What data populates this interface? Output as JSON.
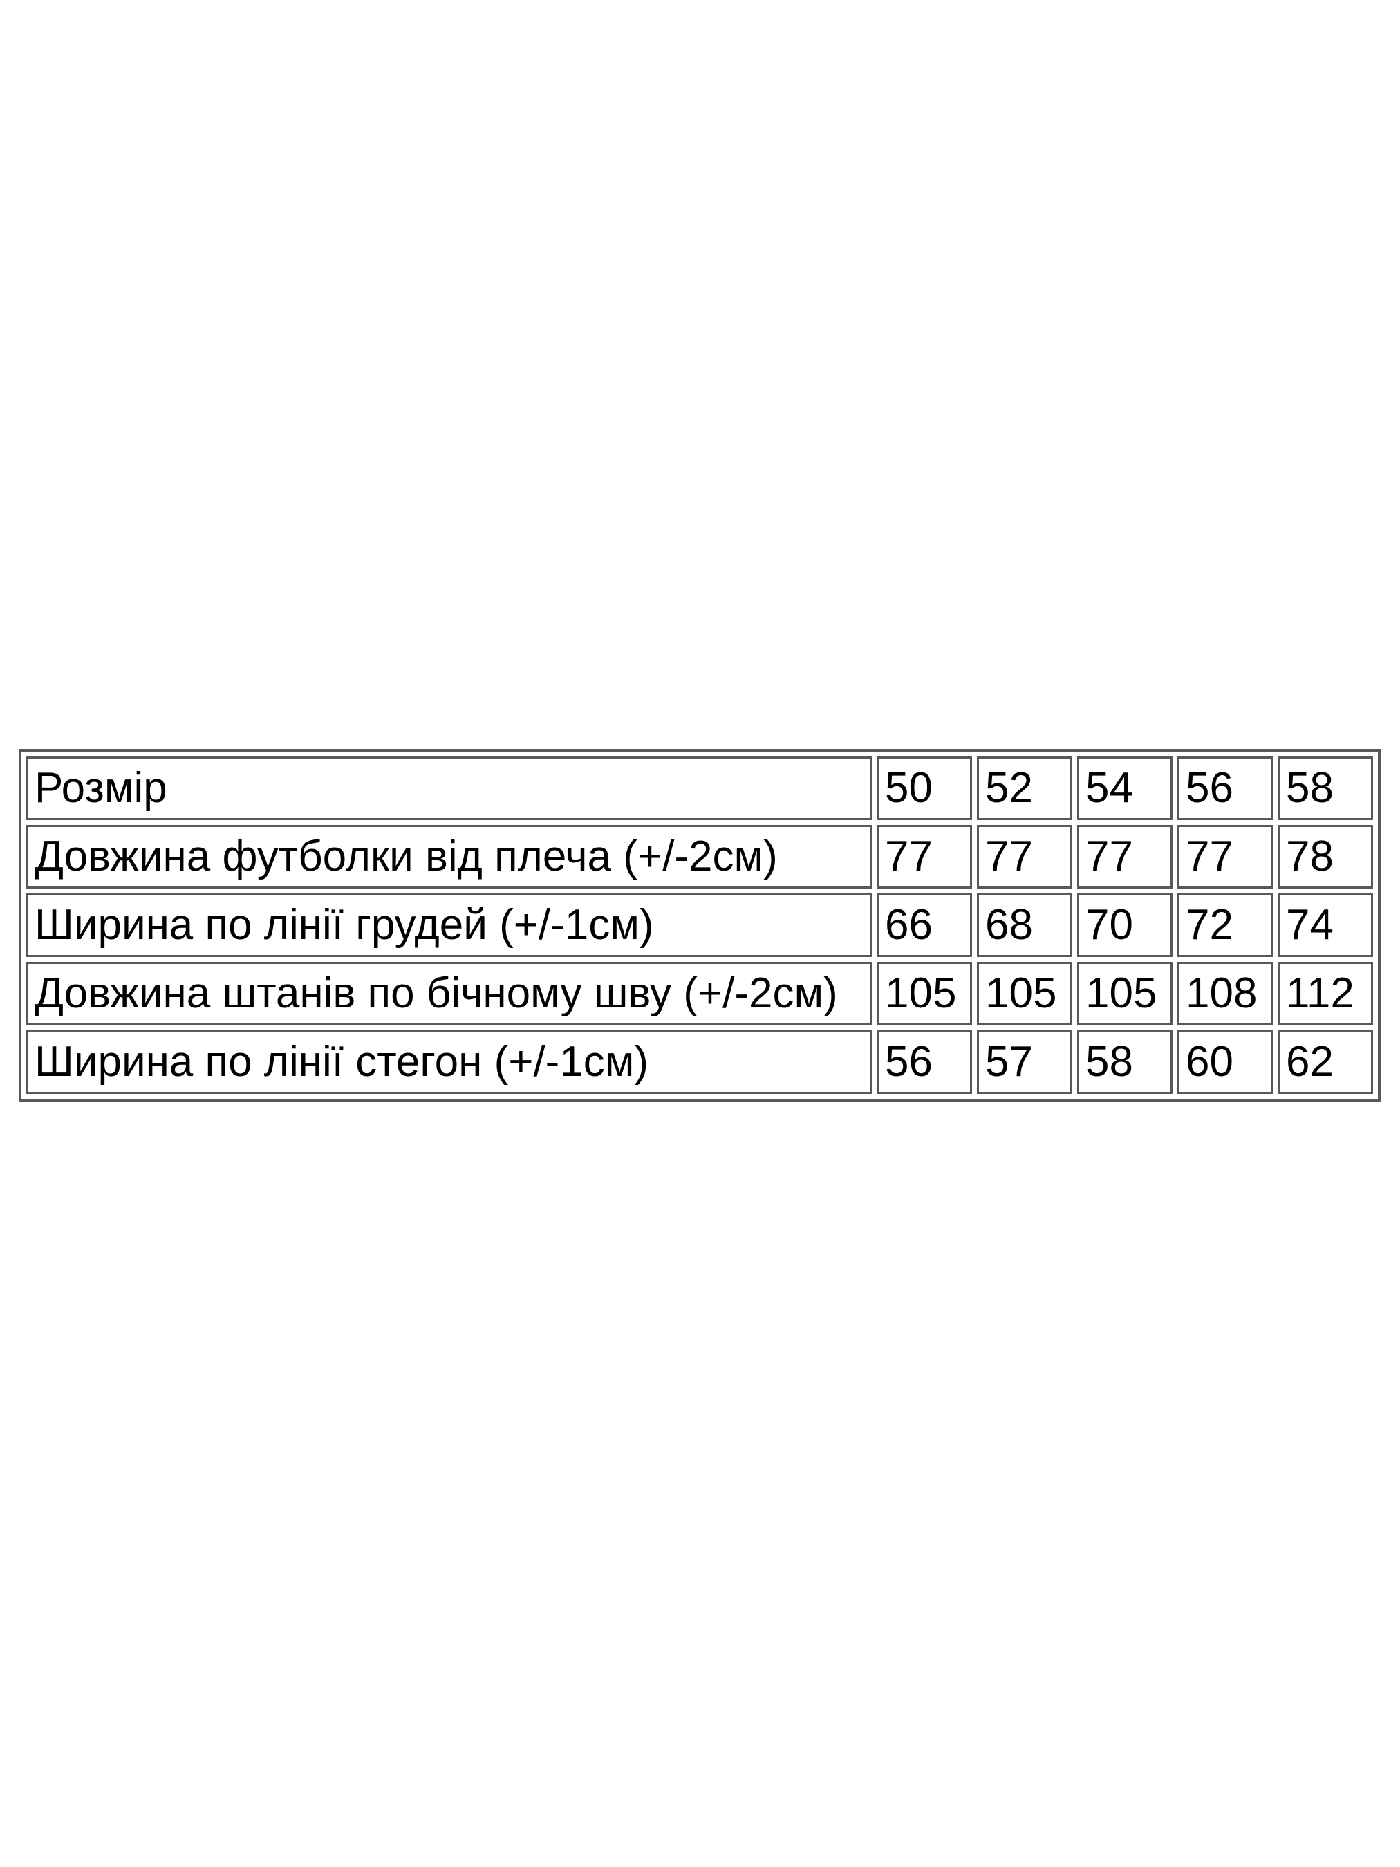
{
  "page": {
    "background": "#ffffff"
  },
  "table": {
    "name": "size-chart",
    "border_color": "#595959",
    "text_color": "#000000",
    "header_row": {
      "label": "Розмір",
      "values": [
        "50",
        "52",
        "54",
        "56",
        "58"
      ]
    },
    "rows": [
      {
        "label": "Розмір",
        "values": [
          "50",
          "52",
          "54",
          "56",
          "58"
        ]
      },
      {
        "label": "Довжина футболки від плеча (+/-2см)",
        "values": [
          "77",
          "77",
          "77",
          "77",
          "78"
        ]
      },
      {
        "label": "Ширина по лінії грудей (+/-1см)",
        "values": [
          "66",
          "68",
          "70",
          "72",
          "74"
        ]
      },
      {
        "label": "Довжина штанів по бічному шву (+/-2см)",
        "values": [
          "105",
          "105",
          "105",
          "108",
          "112"
        ]
      },
      {
        "label": "Ширина по лінії стегон (+/-1см)",
        "values": [
          "56",
          "57",
          "58",
          "60",
          "62"
        ]
      }
    ]
  }
}
